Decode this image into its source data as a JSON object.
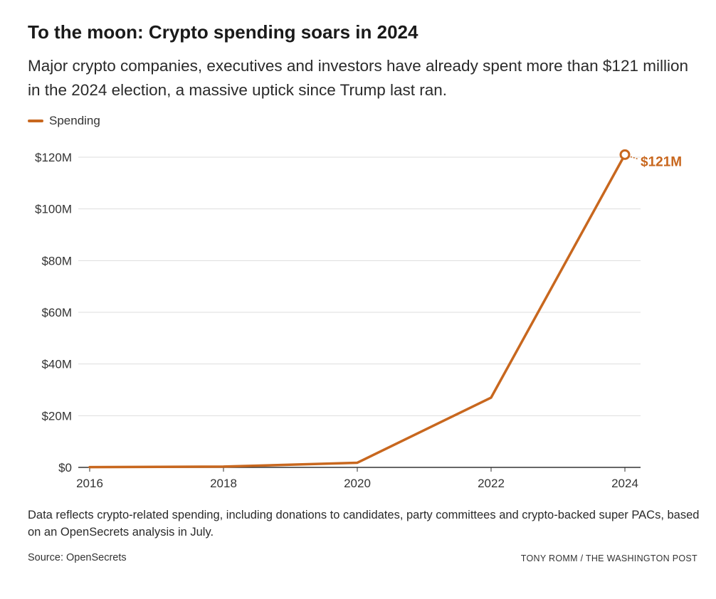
{
  "colors": {
    "series": "#c8671e",
    "grid": "#dddddd",
    "axis": "#333333"
  },
  "chart_data": {
    "type": "line",
    "title": "To the moon: Crypto spending soars in 2024",
    "subtitle": "Major crypto companies, executives and investors have already spent more than $121 million in the 2024 election, a massive uptick since Trump last ran.",
    "xlabel": "",
    "ylabel": "",
    "x": [
      2016,
      2018,
      2020,
      2022,
      2024
    ],
    "x_tick_labels": [
      "2016",
      "2018",
      "2020",
      "2022",
      "2024"
    ],
    "xlim": [
      2016,
      2024
    ],
    "y_ticks": [
      0,
      20,
      40,
      60,
      80,
      100,
      120
    ],
    "y_tick_labels": [
      "$0",
      "$20M",
      "$40M",
      "$60M",
      "$80M",
      "$100M",
      "$120M"
    ],
    "ylim": [
      0,
      120
    ],
    "grid": true,
    "legend_position": "top-left",
    "series": [
      {
        "name": "Spending",
        "values": [
          0.1,
          0.3,
          1.8,
          27,
          121
        ]
      }
    ],
    "annotations": [
      {
        "x": 2024,
        "y": 121,
        "text": "$121M"
      }
    ]
  },
  "footer": {
    "note": "Data reflects crypto-related spending, including donations to candidates, party committees and crypto-backed super PACs, based on an OpenSecrets analysis in July.",
    "source": "Source: OpenSecrets",
    "credit": "TONY ROMM / THE WASHINGTON POST"
  }
}
